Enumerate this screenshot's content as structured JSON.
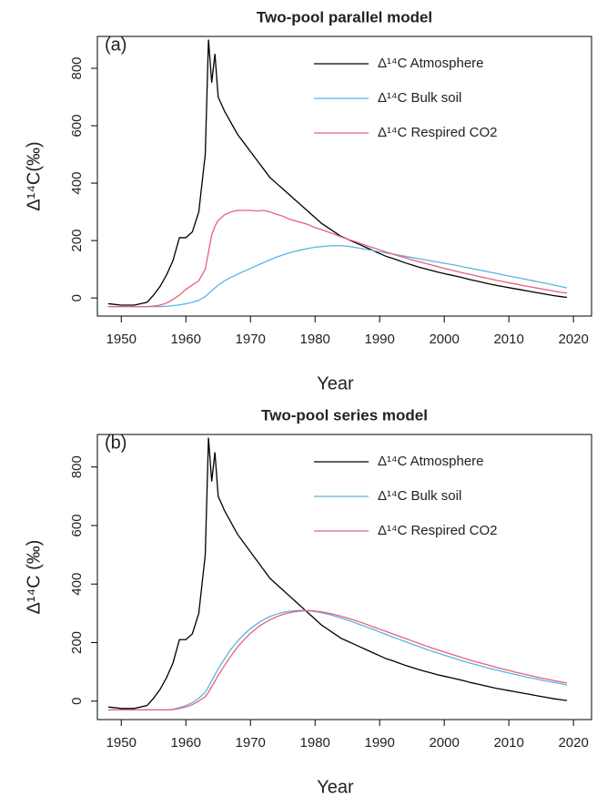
{
  "chart_data": [
    {
      "type": "line",
      "title": "Two-pool parallel model",
      "panel_label": "(a)",
      "xlabel": "Year",
      "ylabel": "Δ¹⁴C(‰)",
      "x": [
        1948,
        1950,
        1952,
        1954,
        1955,
        1956,
        1957,
        1958,
        1959,
        1960,
        1961,
        1962,
        1963,
        1963.5,
        1964,
        1964.5,
        1965,
        1966,
        1967,
        1968,
        1969,
        1970,
        1971,
        1972,
        1973,
        1974,
        1975,
        1976,
        1977,
        1978,
        1979,
        1980,
        1981,
        1982,
        1983,
        1984,
        1985,
        1986,
        1987,
        1988,
        1989,
        1990,
        1991,
        1992,
        1993,
        1994,
        1995,
        1996,
        1997,
        1998,
        1999,
        2000,
        2001,
        2002,
        2003,
        2004,
        2005,
        2006,
        2007,
        2008,
        2009,
        2010,
        2011,
        2012,
        2013,
        2014,
        2015,
        2016,
        2017,
        2018,
        2019
      ],
      "series": [
        {
          "name": "Δ¹⁴C Atmosphere",
          "color": "#000000",
          "values": [
            -20,
            -25,
            -25,
            -15,
            10,
            40,
            80,
            130,
            210,
            210,
            230,
            300,
            500,
            900,
            750,
            850,
            700,
            650,
            610,
            570,
            540,
            510,
            480,
            450,
            420,
            400,
            380,
            360,
            340,
            320,
            300,
            280,
            260,
            245,
            230,
            215,
            205,
            195,
            185,
            175,
            165,
            155,
            145,
            138,
            130,
            122,
            115,
            108,
            102,
            96,
            90,
            85,
            80,
            75,
            70,
            64,
            59,
            54,
            49,
            44,
            40,
            36,
            32,
            28,
            24,
            20,
            16,
            12,
            8,
            5,
            2
          ]
        },
        {
          "name": "Δ¹⁴C Bulk soil",
          "color": "#5ab4e5",
          "values": [
            -30,
            -30,
            -30,
            -30,
            -30,
            -30,
            -29,
            -27,
            -24,
            -20,
            -15,
            -8,
            5,
            15,
            25,
            35,
            45,
            60,
            72,
            83,
            93,
            103,
            113,
            123,
            133,
            142,
            150,
            157,
            163,
            168,
            173,
            177,
            179,
            181,
            182,
            182,
            180,
            177,
            173,
            169,
            165,
            161,
            157,
            153,
            149,
            145,
            141,
            137,
            133,
            129,
            125,
            121,
            117,
            113,
            108,
            104,
            99,
            95,
            90,
            86,
            81,
            77,
            72,
            68,
            63,
            59,
            54,
            50,
            45,
            40,
            35
          ]
        },
        {
          "name": "Δ¹⁴C Respired CO2",
          "color": "#e8607a",
          "values": [
            -30,
            -30,
            -30,
            -30,
            -28,
            -25,
            -18,
            -5,
            10,
            30,
            45,
            60,
            100,
            160,
            220,
            250,
            270,
            290,
            300,
            305,
            305,
            305,
            303,
            305,
            300,
            292,
            285,
            275,
            268,
            262,
            255,
            245,
            238,
            230,
            222,
            213,
            205,
            198,
            190,
            182,
            175,
            168,
            160,
            153,
            146,
            140,
            133,
            127,
            121,
            115,
            109,
            103,
            98,
            92,
            87,
            82,
            77,
            72,
            67,
            62,
            58,
            53,
            49,
            44,
            40,
            36,
            32,
            28,
            24,
            20,
            17
          ]
        }
      ],
      "xlim": [
        1946.3,
        2022.8
      ],
      "ylim": [
        -63,
        911
      ],
      "xticks": [
        1950,
        1960,
        1970,
        1980,
        1990,
        2000,
        2010,
        2020
      ],
      "yticks": [
        0,
        200,
        400,
        600,
        800
      ]
    },
    {
      "type": "line",
      "title": "Two-pool series model",
      "panel_label": "(b)",
      "xlabel": "Year",
      "ylabel": "Δ¹⁴C (‰)",
      "x": [
        1948,
        1950,
        1952,
        1954,
        1955,
        1956,
        1957,
        1958,
        1959,
        1960,
        1961,
        1962,
        1963,
        1963.5,
        1964,
        1964.5,
        1965,
        1966,
        1967,
        1968,
        1969,
        1970,
        1971,
        1972,
        1973,
        1974,
        1975,
        1976,
        1977,
        1978,
        1979,
        1980,
        1981,
        1982,
        1983,
        1984,
        1985,
        1986,
        1987,
        1988,
        1989,
        1990,
        1991,
        1992,
        1993,
        1994,
        1995,
        1996,
        1997,
        1998,
        1999,
        2000,
        2001,
        2002,
        2003,
        2004,
        2005,
        2006,
        2007,
        2008,
        2009,
        2010,
        2011,
        2012,
        2013,
        2014,
        2015,
        2016,
        2017,
        2018,
        2019
      ],
      "series": [
        {
          "name": "Δ¹⁴C Atmosphere",
          "color": "#000000",
          "values": [
            -20,
            -25,
            -25,
            -15,
            10,
            40,
            80,
            130,
            210,
            210,
            230,
            300,
            500,
            900,
            750,
            850,
            700,
            650,
            610,
            570,
            540,
            510,
            480,
            450,
            420,
            400,
            380,
            360,
            340,
            320,
            300,
            280,
            260,
            245,
            230,
            215,
            205,
            195,
            185,
            175,
            165,
            155,
            145,
            138,
            130,
            122,
            115,
            108,
            102,
            96,
            90,
            85,
            80,
            75,
            70,
            64,
            59,
            54,
            49,
            44,
            40,
            36,
            32,
            28,
            24,
            20,
            16,
            12,
            8,
            5,
            2
          ]
        },
        {
          "name": "Δ¹⁴C Bulk soil",
          "color": "#5ab4e5",
          "values": [
            -30,
            -30,
            -30,
            -30,
            -30,
            -30,
            -30,
            -28,
            -22,
            -15,
            -5,
            10,
            30,
            50,
            70,
            90,
            110,
            145,
            178,
            205,
            228,
            248,
            264,
            278,
            289,
            297,
            303,
            307,
            309,
            310,
            309,
            306,
            302,
            297,
            291,
            284,
            277,
            269,
            261,
            253,
            245,
            236,
            228,
            219,
            211,
            203,
            195,
            187,
            179,
            171,
            164,
            157,
            150,
            143,
            136,
            130,
            124,
            118,
            112,
            107,
            101,
            96,
            91,
            86,
            81,
            77,
            72,
            68,
            64,
            60,
            55
          ]
        },
        {
          "name": "Δ¹⁴C Respired CO2",
          "color": "#e8607a",
          "values": [
            -30,
            -30,
            -30,
            -30,
            -30,
            -30,
            -30,
            -29,
            -25,
            -20,
            -12,
            0,
            15,
            30,
            50,
            68,
            88,
            122,
            155,
            185,
            210,
            232,
            250,
            265,
            278,
            288,
            296,
            302,
            306,
            308,
            309,
            308,
            305,
            301,
            296,
            290,
            284,
            277,
            270,
            262,
            254,
            246,
            238,
            230,
            222,
            214,
            206,
            198,
            190,
            182,
            175,
            168,
            161,
            154,
            147,
            140,
            134,
            128,
            122,
            116,
            110,
            105,
            99,
            94,
            89,
            84,
            79,
            75,
            70,
            66,
            62
          ]
        }
      ],
      "xlim": [
        1946.3,
        2022.8
      ],
      "ylim": [
        -63,
        911
      ],
      "xticks": [
        1950,
        1960,
        1970,
        1980,
        1990,
        2000,
        2010,
        2020
      ],
      "yticks": [
        0,
        200,
        400,
        600,
        800
      ]
    }
  ]
}
